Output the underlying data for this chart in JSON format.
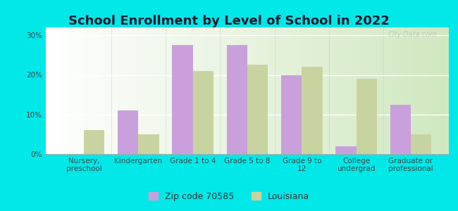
{
  "title": "School Enrollment by Level of School in 2022",
  "categories": [
    "Nursery,\npreschool",
    "Kindergarten",
    "Grade 1 to 4",
    "Grade 5 to 8",
    "Grade 9 to\n12",
    "College\nundergrad",
    "Graduate or\nprofessional"
  ],
  "zip_values": [
    0.0,
    11.0,
    27.5,
    27.5,
    20.0,
    2.0,
    12.5
  ],
  "la_values": [
    6.0,
    5.0,
    21.0,
    22.5,
    22.0,
    19.0,
    5.0
  ],
  "zip_color": "#c9a0dc",
  "la_color": "#c8d4a0",
  "zip_label": "Zip code 70585",
  "la_label": "Louisiana",
  "background_outer": "#00e8e8",
  "background_plot_left": "#ffffff",
  "background_plot_right": "#d8ecd0",
  "ylim": [
    0,
    32
  ],
  "yticks": [
    0,
    10,
    20,
    30
  ],
  "ytick_labels": [
    "0%",
    "10%",
    "20%",
    "30%"
  ],
  "bar_width": 0.38,
  "title_fontsize": 13,
  "tick_fontsize": 7.5,
  "legend_fontsize": 9,
  "watermark": "City-Data.com",
  "title_color": "#1a1a2e"
}
